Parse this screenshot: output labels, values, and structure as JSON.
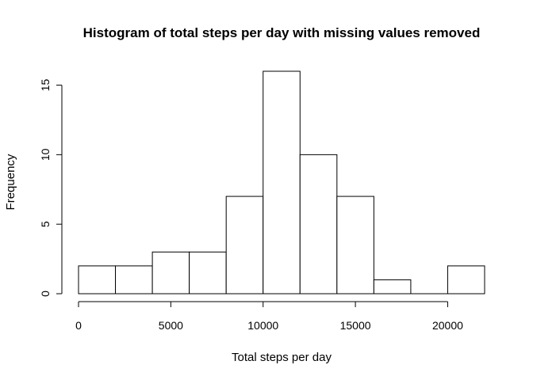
{
  "chart_data": {
    "type": "bar",
    "title": "Histogram of total steps per day with missing values removed",
    "xlabel": "Total steps per day",
    "ylabel": "Frequency",
    "bin_edges": [
      0,
      2000,
      4000,
      6000,
      8000,
      10000,
      12000,
      14000,
      16000,
      18000,
      20000,
      22000
    ],
    "values": [
      2,
      2,
      3,
      3,
      7,
      16,
      10,
      7,
      1,
      0,
      2
    ],
    "xlim": [
      0,
      22000
    ],
    "ylim": [
      0,
      16
    ],
    "x_ticks": [
      0,
      5000,
      10000,
      15000,
      20000
    ],
    "y_ticks": [
      0,
      5,
      10,
      15
    ],
    "grid": false,
    "bar_fill": "#ffffff",
    "bar_stroke": "#000000"
  }
}
